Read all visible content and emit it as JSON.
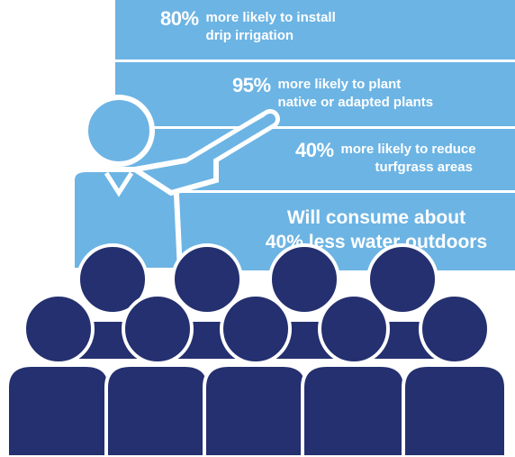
{
  "board": {
    "background": "#6cb4e4",
    "stats": [
      {
        "percent": "80%",
        "line1": "more likely to install",
        "line2": "drip irrigation"
      },
      {
        "percent": "95%",
        "line1": "more likely to plant",
        "line2": "native or adapted plants"
      },
      {
        "percent": "40%",
        "line1": "more likely to reduce",
        "line2": "turfgrass areas"
      }
    ],
    "summary_line1": "Will consume about",
    "summary_line2": "40% less water outdoors"
  },
  "presenter_color": "#6cb4e4",
  "audience_color": "#24306f",
  "icons": [
    "presenter-icon",
    "audience-icon"
  ]
}
